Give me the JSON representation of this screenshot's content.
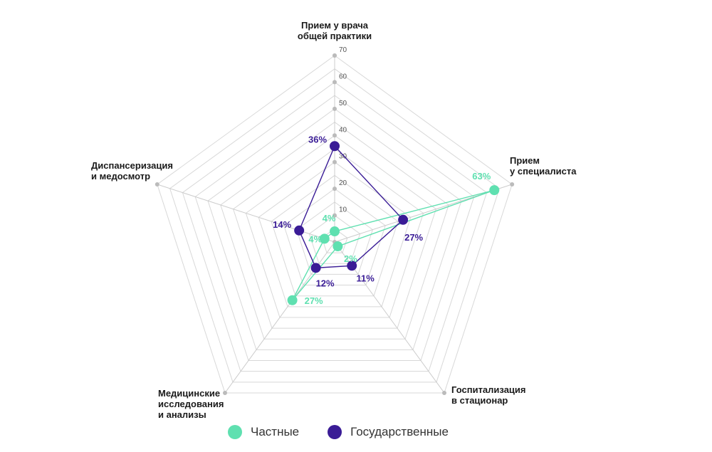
{
  "chart_data": {
    "type": "radar",
    "categories": [
      [
        "Прием у врача",
        "общей практики"
      ],
      [
        "Прием",
        "у специалиста"
      ],
      [
        "Госпитализация",
        "в стационар"
      ],
      [
        "Медицинские",
        "исследования",
        "и анализы"
      ],
      [
        "Диспансеризация",
        "и медосмотр"
      ]
    ],
    "rmax": 70,
    "ticks": [
      "10",
      "20",
      "30",
      "40",
      "50",
      "60",
      "70"
    ],
    "tick_values": [
      10,
      20,
      30,
      40,
      50,
      60,
      70
    ],
    "series": [
      {
        "name": "Частные",
        "color": "#5fe0b0",
        "values": [
          4,
          63,
          2,
          27,
          4
        ],
        "labels": [
          "4%",
          "63%",
          "2%",
          "27%",
          "4%"
        ]
      },
      {
        "name": "Государственные",
        "color": "#3a1c96",
        "values": [
          36,
          27,
          11,
          12,
          14
        ],
        "labels": [
          "36%",
          "27%",
          "11%",
          "12%",
          "14%"
        ]
      }
    ]
  },
  "legend": {
    "private_label": "Частные",
    "public_label": "Государственные"
  }
}
